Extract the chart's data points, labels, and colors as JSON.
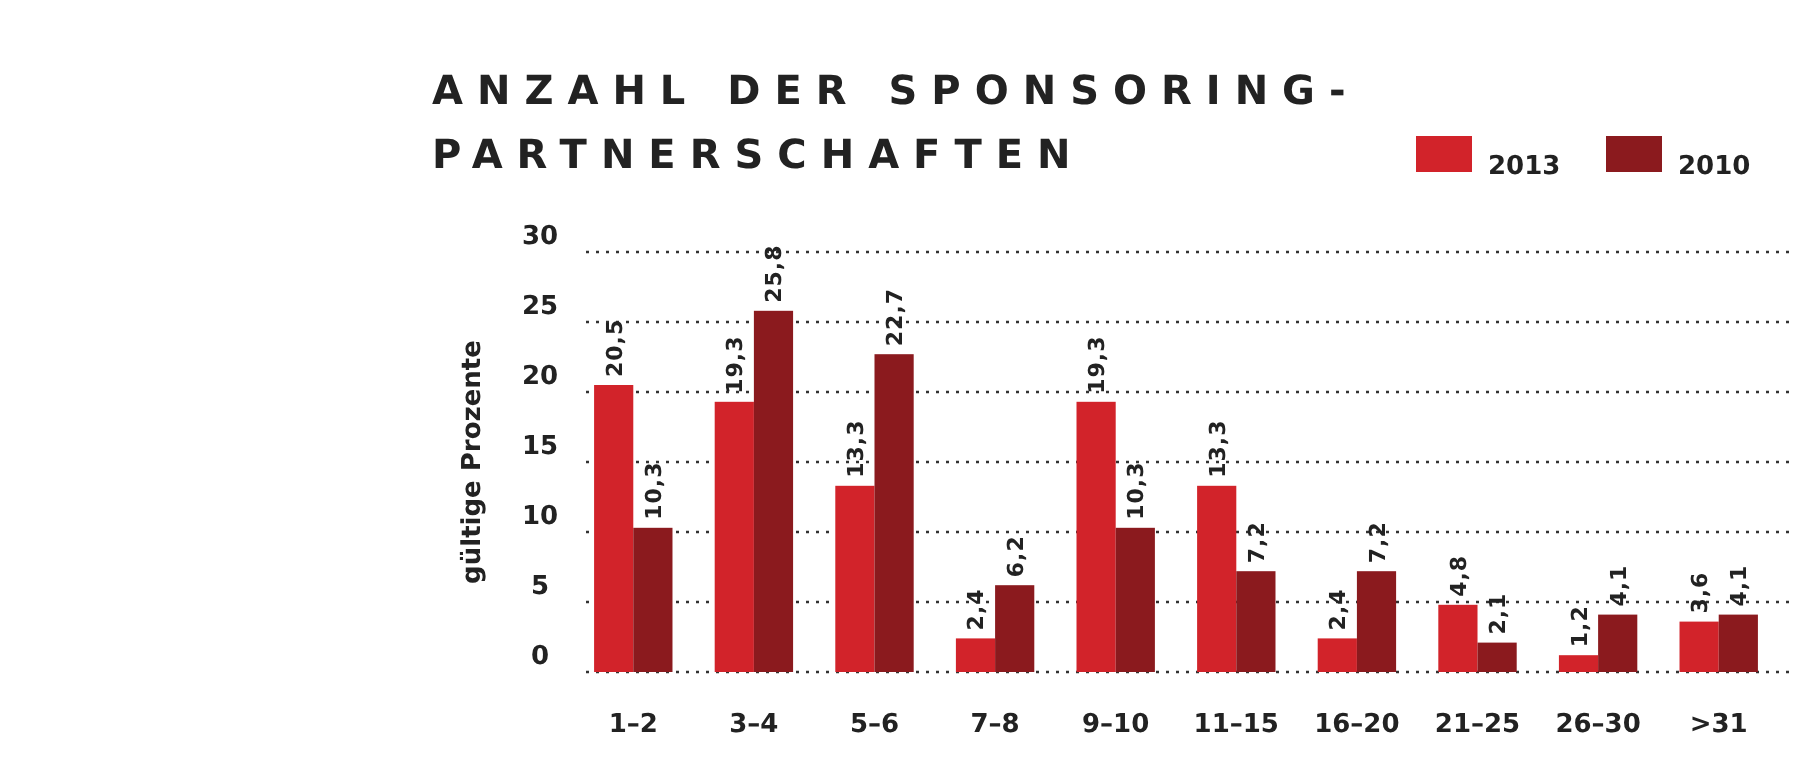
{
  "chart_data": {
    "type": "bar",
    "title": "ANZAHL DER SPONSORING-PARTNERSCHAFTEN",
    "ylabel": "gültige Prozente",
    "categories": [
      "1–2",
      "3–4",
      "5–6",
      "7–8",
      "9–10",
      "11–15",
      "16–20",
      "21–25",
      "26–30",
      ">31"
    ],
    "series": [
      {
        "name": "2013",
        "color": "#d2232a",
        "values": [
          20.5,
          19.3,
          13.3,
          2.4,
          19.3,
          13.3,
          2.4,
          4.8,
          1.2,
          3.6
        ],
        "value_labels": [
          "20,5",
          "19,3",
          "13,3",
          "2,4",
          "19,3",
          "13,3",
          "2,4",
          "4,8",
          "1,2",
          "3,6"
        ]
      },
      {
        "name": "2010",
        "color": "#8b1a1e",
        "values": [
          10.3,
          25.8,
          22.7,
          6.2,
          10.3,
          7.2,
          7.2,
          2.1,
          4.1,
          4.1
        ],
        "value_labels": [
          "10,3",
          "25,8",
          "22,7",
          "6,2",
          "10,3",
          "7,2",
          "7,2",
          "2,1",
          "4,1",
          "4,1"
        ]
      }
    ],
    "ylim": [
      0,
      30
    ],
    "yticks": [
      0,
      5,
      10,
      15,
      20,
      25,
      30
    ],
    "grid": "y",
    "legend": "top right"
  }
}
